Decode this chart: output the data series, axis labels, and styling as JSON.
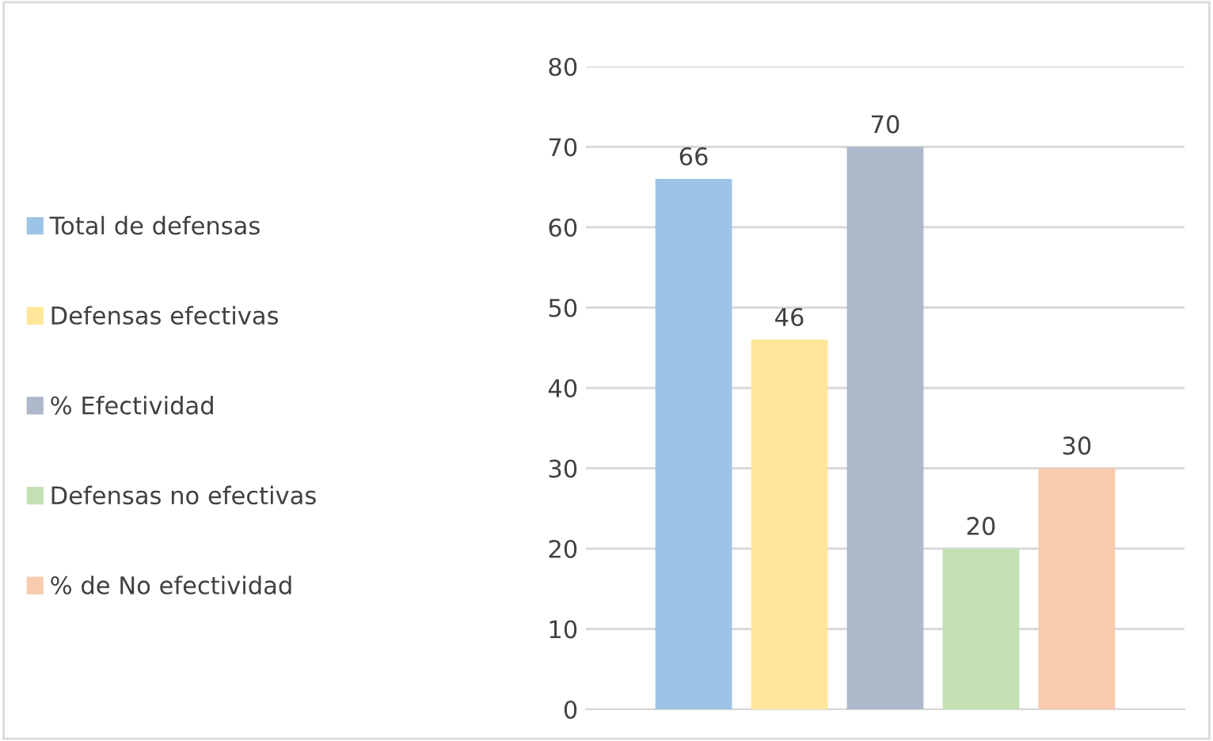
{
  "chart_data": {
    "type": "bar",
    "categories": [
      null
    ],
    "series": [
      {
        "name": "Total de defensas",
        "color": "#9dc3e6",
        "values": [
          66
        ]
      },
      {
        "name": "Defensas efectivas",
        "color": "#ffe699",
        "values": [
          46
        ]
      },
      {
        "name": "% Efectividad",
        "color": "#adb9ca",
        "values": [
          70
        ]
      },
      {
        "name": "Defensas no efectivas",
        "color": "#c5e0b4",
        "values": [
          20
        ]
      },
      {
        "name": "% de No efectividad",
        "color": "#f8cbad",
        "values": [
          30
        ]
      }
    ],
    "ylim": [
      0,
      80
    ],
    "yticks": [
      0,
      10,
      20,
      30,
      40,
      50,
      60,
      70,
      80
    ],
    "grid": "y",
    "legend": "left",
    "data_labels": true
  }
}
